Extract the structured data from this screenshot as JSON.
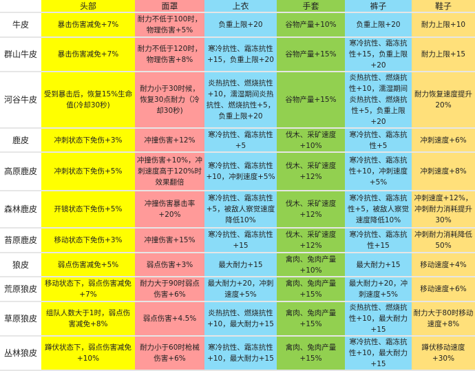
{
  "columns": [
    "",
    "头部",
    "面罩",
    "上衣",
    "手套",
    "裤子",
    "鞋子"
  ],
  "colors": {
    "头部": "#ffff00",
    "面罩": "#ff9a99",
    "上衣": "#8adcf8",
    "手套": "#92d050",
    "裤子": "#8adcf8",
    "鞋子": "#ffe07a"
  },
  "rows": [
    {
      "name": "牛皮",
      "cells": [
        "暴击伤害减免+7%",
        "耐力不低于100时，物理伤害+5%",
        "负重上限+20",
        "谷物产量+10%",
        "负重上限+20",
        "耐力上限+10"
      ]
    },
    {
      "name": "群山牛皮",
      "cells": [
        "暴击伤害减免+7%",
        "耐力不低于120时，物理伤害+8%",
        "寒冷抗性、霜冻抗性+15，负重上限+20",
        "谷物产量+15%",
        "寒冷抗性、霜冻抗性+15，负重上限+20",
        "耐力上限+15"
      ]
    },
    {
      "name": "河谷牛皮",
      "cells": [
        "受到暴击后，恢复15%生命值(冷却30秒)",
        "耐力小于30时候，恢复30点耐力（冷却30秒)",
        "炎热抗性、燃烧抗性+10，濡湿期间炎热抗性、燃烧抗性+5，负重上限+20",
        "谷物产量+15%",
        "炎热抗性、燃烧抗性+10，濡湿期间炎热抗性、燃烧抗性+5，负重上限+20",
        "耐力恢复速度提升20%"
      ]
    },
    {
      "name": "鹿皮",
      "cells": [
        "冲刺状态下免伤+3%",
        "冲撞伤害+12%",
        "寒冷抗性、霜冻抗性+5",
        "伐木、采矿速度+10%",
        "寒冷抗性、霜冻抗性+5",
        "冲刺速度+6%"
      ]
    },
    {
      "name": "高原鹿皮",
      "cells": [
        "冲刺状态下免伤+5%",
        "冲撞伤害+10%，冲刺速度高于120%时效果翻倍",
        "寒冷抗性、霜冻抗性+10，冲刺速度+5%",
        "伐木、采矿速度+12%",
        "寒冷抗性、霜冻抗性+10，冲刺速度+5%",
        "冲刺速度+8%"
      ]
    },
    {
      "name": "森林鹿皮",
      "cells": [
        "开镜状态下免伤+5%",
        "冲撞伤害暴击率+20%",
        "寒冷抗性、霜冻抗性+5，被敌人察觉速度降低10%",
        "伐木、采矿速度+12%",
        "寒冷抗性、霜冻抗性+5，被敌人察觉速度降低10%",
        "冲刺速度+12%，冲刺耐力消耗提升30%"
      ]
    },
    {
      "name": "苔原鹿皮",
      "cells": [
        "移动状态下免伤+3%",
        "冲撞伤害+15%",
        "寒冷抗性、霜冻抗性+15",
        "伐木、采矿速度+12%",
        "寒冷抗性、霜冻抗性+15",
        "冲刺耐力消耗降低50%"
      ]
    },
    {
      "name": "狼皮",
      "cells": [
        "弱点伤害减免+5%",
        "弱点伤害+3%",
        "最大耐力+15",
        "禽肉、兔肉产量+10%",
        "最大耐力+15",
        "移动速度+4%"
      ]
    },
    {
      "name": "荒原狼皮",
      "cells": [
        "移动状态下，弱点伤害减免+7%",
        "耐力大于90时弱点伤害+6%",
        "最大耐力+20，冲刺速度+5%",
        "禽肉、兔肉产量+15%",
        "最大耐力+20，冲刺速度+5%",
        "移动速度+6%"
      ]
    },
    {
      "name": "草原狼皮",
      "cells": [
        "组队人数大于1时，弱点伤害减免+8%",
        "弱点伤害+4.5%",
        "炎热抗性、燃烧抗性+10，最大耐力+15",
        "禽肉、兔肉产量+15%",
        "炎热抗性、燃烧抗性+10，最大耐力+15",
        "耐力大于80时移动速度+8%"
      ]
    },
    {
      "name": "丛林狼皮",
      "cells": [
        "蹲伏状态下，弱点伤害减免+10%",
        "耐力小于60时枪械伤害+6%",
        "寒冷抗性、霜冻抗性+10，最大耐力+15",
        "禽肉、兔肉产量+15%",
        "寒冷抗性、霜冻抗性+10，最大耐力+15",
        "蹲伏移动速度+30%"
      ]
    }
  ]
}
